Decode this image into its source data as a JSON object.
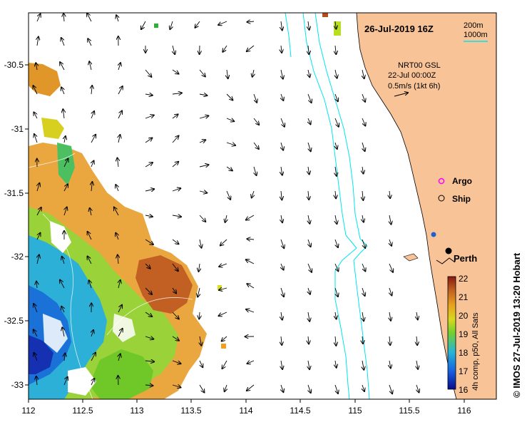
{
  "map": {
    "title": "26-Jul-2019 16Z",
    "scale": {
      "contour_200": "200m",
      "contour_1000": "1000m"
    },
    "current_info": {
      "line1": "NRT00 GSL",
      "line2": "22-Jul 00:00Z",
      "line3": "0.5m/s (1kt 6h)"
    },
    "legend": {
      "argo": "Argo",
      "ship": "Ship"
    },
    "city": "Perth",
    "colorbar": {
      "label": "4h comp, p50, All Sats",
      "ticks": [
        "22",
        "21",
        "20",
        "19",
        "18",
        "17",
        "16"
      ],
      "min": 16,
      "max": 22
    },
    "credit": "© IMOS 27-Jul-2019 13:20 Hobart",
    "axes": {
      "x_ticks": [
        "112",
        "112.5",
        "113",
        "113.5",
        "114",
        "114.5",
        "115",
        "115.5",
        "116"
      ],
      "y_ticks": [
        "-30.5",
        "-31",
        "-31.5",
        "-32",
        "-32.5",
        "-33"
      ],
      "lon_range": [
        112,
        116.3
      ],
      "lat_range": [
        -30.1,
        -33.1
      ]
    },
    "colors": {
      "land": "#f8c397",
      "contour": "#00e5ee",
      "argo": "#ff00ff",
      "ship_marker": "#1f5fd0"
    }
  }
}
